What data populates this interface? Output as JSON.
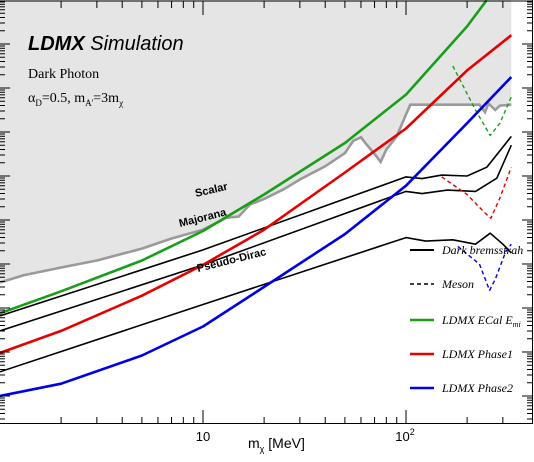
{
  "chart_data": {
    "type": "line",
    "title": "LDMX Simulation",
    "title_parts": {
      "bold": "LDMX",
      "rest": " Simulation"
    },
    "subtitle": "Dark Photon",
    "params": {
      "alpha": "α",
      "alpha_sub": "D",
      "alpha_val": "=0.5, m",
      "ma_sub": "A'",
      "mid": "=3m",
      "mchi_sub": "χ"
    },
    "xlabel": "m_χ [MeV]",
    "xlabel_parts": {
      "m": "m",
      "sub": "χ",
      "unit": " [MeV]"
    },
    "xscale": "log",
    "xlim": [
      1,
      330
    ],
    "ylim_decades": [
      -16,
      -6
    ],
    "x_tick_labels": [
      {
        "value": 10,
        "base": "10",
        "exp": ""
      },
      {
        "value": 100,
        "base": "10",
        "exp": "2"
      }
    ],
    "grey_excluded": {
      "color": "#e5e5e5",
      "boundary": [
        [
          1,
          -12.42
        ],
        [
          1.3,
          -12.26
        ],
        [
          2,
          -12.08
        ],
        [
          3,
          -11.92
        ],
        [
          5,
          -11.65
        ],
        [
          7,
          -11.42
        ],
        [
          10,
          -11.22
        ],
        [
          13,
          -10.95
        ],
        [
          15,
          -10.92
        ],
        [
          17,
          -10.65
        ],
        [
          20,
          -10.52
        ],
        [
          25,
          -10.3
        ],
        [
          30,
          -10.08
        ],
        [
          40,
          -9.78
        ],
        [
          50,
          -9.48
        ],
        [
          55,
          -9.2
        ],
        [
          60,
          -9.12
        ],
        [
          63,
          -9.25
        ],
        [
          70,
          -9.5
        ],
        [
          75,
          -9.68
        ],
        [
          80,
          -9.4
        ],
        [
          90,
          -9.1
        ],
        [
          100,
          -8.6
        ],
        [
          105,
          -8.38
        ],
        [
          120,
          -8.38
        ],
        [
          200,
          -8.38
        ],
        [
          230,
          -8.38
        ],
        [
          245,
          -8.55
        ],
        [
          255,
          -8.35
        ],
        [
          275,
          -8.5
        ],
        [
          290,
          -8.4
        ],
        [
          330,
          -8.38
        ]
      ]
    },
    "series": [
      {
        "name": "Dark bremsstrahlung",
        "color": "#000000",
        "style": "solid",
        "width": 2
      },
      {
        "name": "Meson",
        "color": "#000000",
        "style": "dashed",
        "width": 1.2
      },
      {
        "name": "LDMX ECal E_miss",
        "color": "#1a9e1a",
        "style": "solid",
        "width": 2.4
      },
      {
        "name": "LDMX Phase1",
        "color": "#e60000",
        "style": "solid",
        "width": 2.4
      },
      {
        "name": "LDMX Phase2",
        "color": "#0000e6",
        "style": "solid",
        "width": 2.4
      }
    ],
    "legend_rendered": [
      {
        "label": "Dark bremsstrah",
        "sub": "",
        "color": "#000000",
        "style": "solid"
      },
      {
        "label": "Meson",
        "sub": "",
        "color": "#000000",
        "style": "dashed"
      },
      {
        "label": "LDMX ECal E",
        "sub": "mi",
        "color": "#1a9e1a",
        "style": "solid"
      },
      {
        "label": "LDMX Phase1",
        "sub": "",
        "color": "#e60000",
        "style": "solid"
      },
      {
        "label": "LDMX Phase2",
        "sub": "",
        "color": "#0000e6",
        "style": "solid"
      }
    ],
    "legend_position": "right",
    "curve_labels": [
      "Scalar",
      "Majorana",
      "Pseudo-Dirac"
    ],
    "thermal_targets": [
      {
        "name": "Scalar",
        "points": [
          [
            1,
            -13.18
          ],
          [
            10,
            -11.68
          ],
          [
            100,
            -10.02
          ],
          [
            120,
            -10.06
          ],
          [
            150,
            -9.98
          ],
          [
            200,
            -10.0
          ],
          [
            250,
            -9.8
          ],
          [
            330,
            -9.1
          ]
        ]
      },
      {
        "name": "Majorana",
        "points": [
          [
            1,
            -13.52
          ],
          [
            10,
            -12.02
          ],
          [
            100,
            -10.35
          ],
          [
            120,
            -10.4
          ],
          [
            160,
            -10.32
          ],
          [
            220,
            -10.35
          ],
          [
            280,
            -10.05
          ],
          [
            330,
            -9.3
          ]
        ]
      },
      {
        "name": "Pseudo-Dirac",
        "points": [
          [
            1,
            -14.45
          ],
          [
            10,
            -12.92
          ],
          [
            100,
            -11.4
          ],
          [
            125,
            -11.48
          ],
          [
            170,
            -11.45
          ],
          [
            220,
            -11.55
          ],
          [
            260,
            -11.3
          ],
          [
            300,
            -11.55
          ],
          [
            330,
            -11.75
          ]
        ]
      }
    ],
    "meson_curves": [
      {
        "points": [
          [
            150,
            -10.02
          ],
          [
            200,
            -10.42
          ],
          [
            240,
            -10.8
          ],
          [
            262,
            -10.96
          ],
          [
            290,
            -10.5
          ],
          [
            330,
            -9.8
          ]
        ]
      },
      {
        "points": [
          [
            180,
            -11.6
          ],
          [
            230,
            -12.0
          ],
          [
            258,
            -12.6
          ],
          [
            275,
            -12.35
          ],
          [
            310,
            -11.72
          ],
          [
            330,
            -11.55
          ]
        ]
      },
      {
        "points": [
          [
            170,
            -7.5
          ],
          [
            220,
            -8.5
          ],
          [
            260,
            -9.08
          ],
          [
            290,
            -8.8
          ],
          [
            330,
            -8.2
          ]
        ]
      }
    ],
    "sensitivity": [
      {
        "name": "LDMX ECal E_miss",
        "points": [
          [
            1,
            -13.12
          ],
          [
            2,
            -12.62
          ],
          [
            5,
            -11.92
          ],
          [
            10,
            -11.25
          ],
          [
            20,
            -10.42
          ],
          [
            50,
            -9.25
          ],
          [
            100,
            -8.15
          ],
          [
            200,
            -6.6
          ],
          [
            250,
            -6.0
          ]
        ]
      },
      {
        "name": "LDMX Phase1",
        "points": [
          [
            1,
            -14.02
          ],
          [
            2,
            -13.52
          ],
          [
            5,
            -12.72
          ],
          [
            10,
            -12.02
          ],
          [
            20,
            -11.22
          ],
          [
            50,
            -9.92
          ],
          [
            100,
            -8.92
          ],
          [
            200,
            -7.6
          ],
          [
            330,
            -6.8
          ]
        ]
      },
      {
        "name": "LDMX Phase2",
        "points": [
          [
            1,
            -15.0
          ],
          [
            2,
            -14.72
          ],
          [
            5,
            -14.08
          ],
          [
            10,
            -13.42
          ],
          [
            20,
            -12.52
          ],
          [
            50,
            -11.32
          ],
          [
            100,
            -10.22
          ],
          [
            200,
            -8.8
          ],
          [
            330,
            -7.75
          ]
        ]
      }
    ]
  }
}
